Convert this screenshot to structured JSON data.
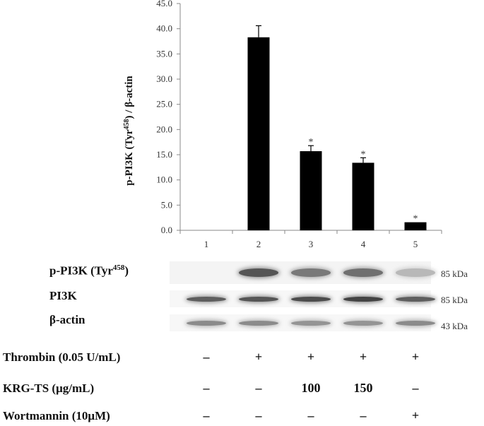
{
  "chart_data": {
    "type": "bar",
    "categories": [
      "1",
      "2",
      "3",
      "4",
      "5"
    ],
    "values": [
      0.0,
      38.3,
      15.7,
      13.4,
      1.6
    ],
    "errors": [
      0,
      2.3,
      1.1,
      1.0,
      0
    ],
    "significance": [
      "",
      "",
      "*",
      "*",
      "*"
    ],
    "ylim": [
      0,
      45
    ],
    "yticks": [
      "0.0",
      "5.0",
      "10.0",
      "15.0",
      "20.0",
      "25.0",
      "30.0",
      "35.0",
      "40.0",
      "45.0"
    ],
    "ylabel": "p-PI3K (Tyr458) / β-actin",
    "bar_color": "#000000"
  },
  "blot": {
    "rows": [
      {
        "label": "p-PI3K (Tyr",
        "label_sup": "458",
        "label_end": ")",
        "size": "85 kDa",
        "intensities": [
          0.0,
          0.75,
          0.55,
          0.6,
          0.2
        ]
      },
      {
        "label": "PI3K",
        "size": "85 kDa",
        "intensities": [
          0.7,
          0.75,
          0.8,
          0.85,
          0.7
        ]
      },
      {
        "label": "β-actin",
        "size": "43 kDa",
        "intensities": [
          0.45,
          0.45,
          0.4,
          0.4,
          0.45
        ]
      }
    ]
  },
  "conditions": [
    {
      "label": "Thrombin (0.05 U/mL)",
      "values": [
        "–",
        "+",
        "+",
        "+",
        "+"
      ]
    },
    {
      "label": "KRG-TS (μg/mL)",
      "values": [
        "–",
        "–",
        "100",
        "150",
        "–"
      ]
    },
    {
      "label": "Wortmannin (10μM)",
      "values": [
        "–",
        "–",
        "–",
        "–",
        "+"
      ]
    }
  ]
}
